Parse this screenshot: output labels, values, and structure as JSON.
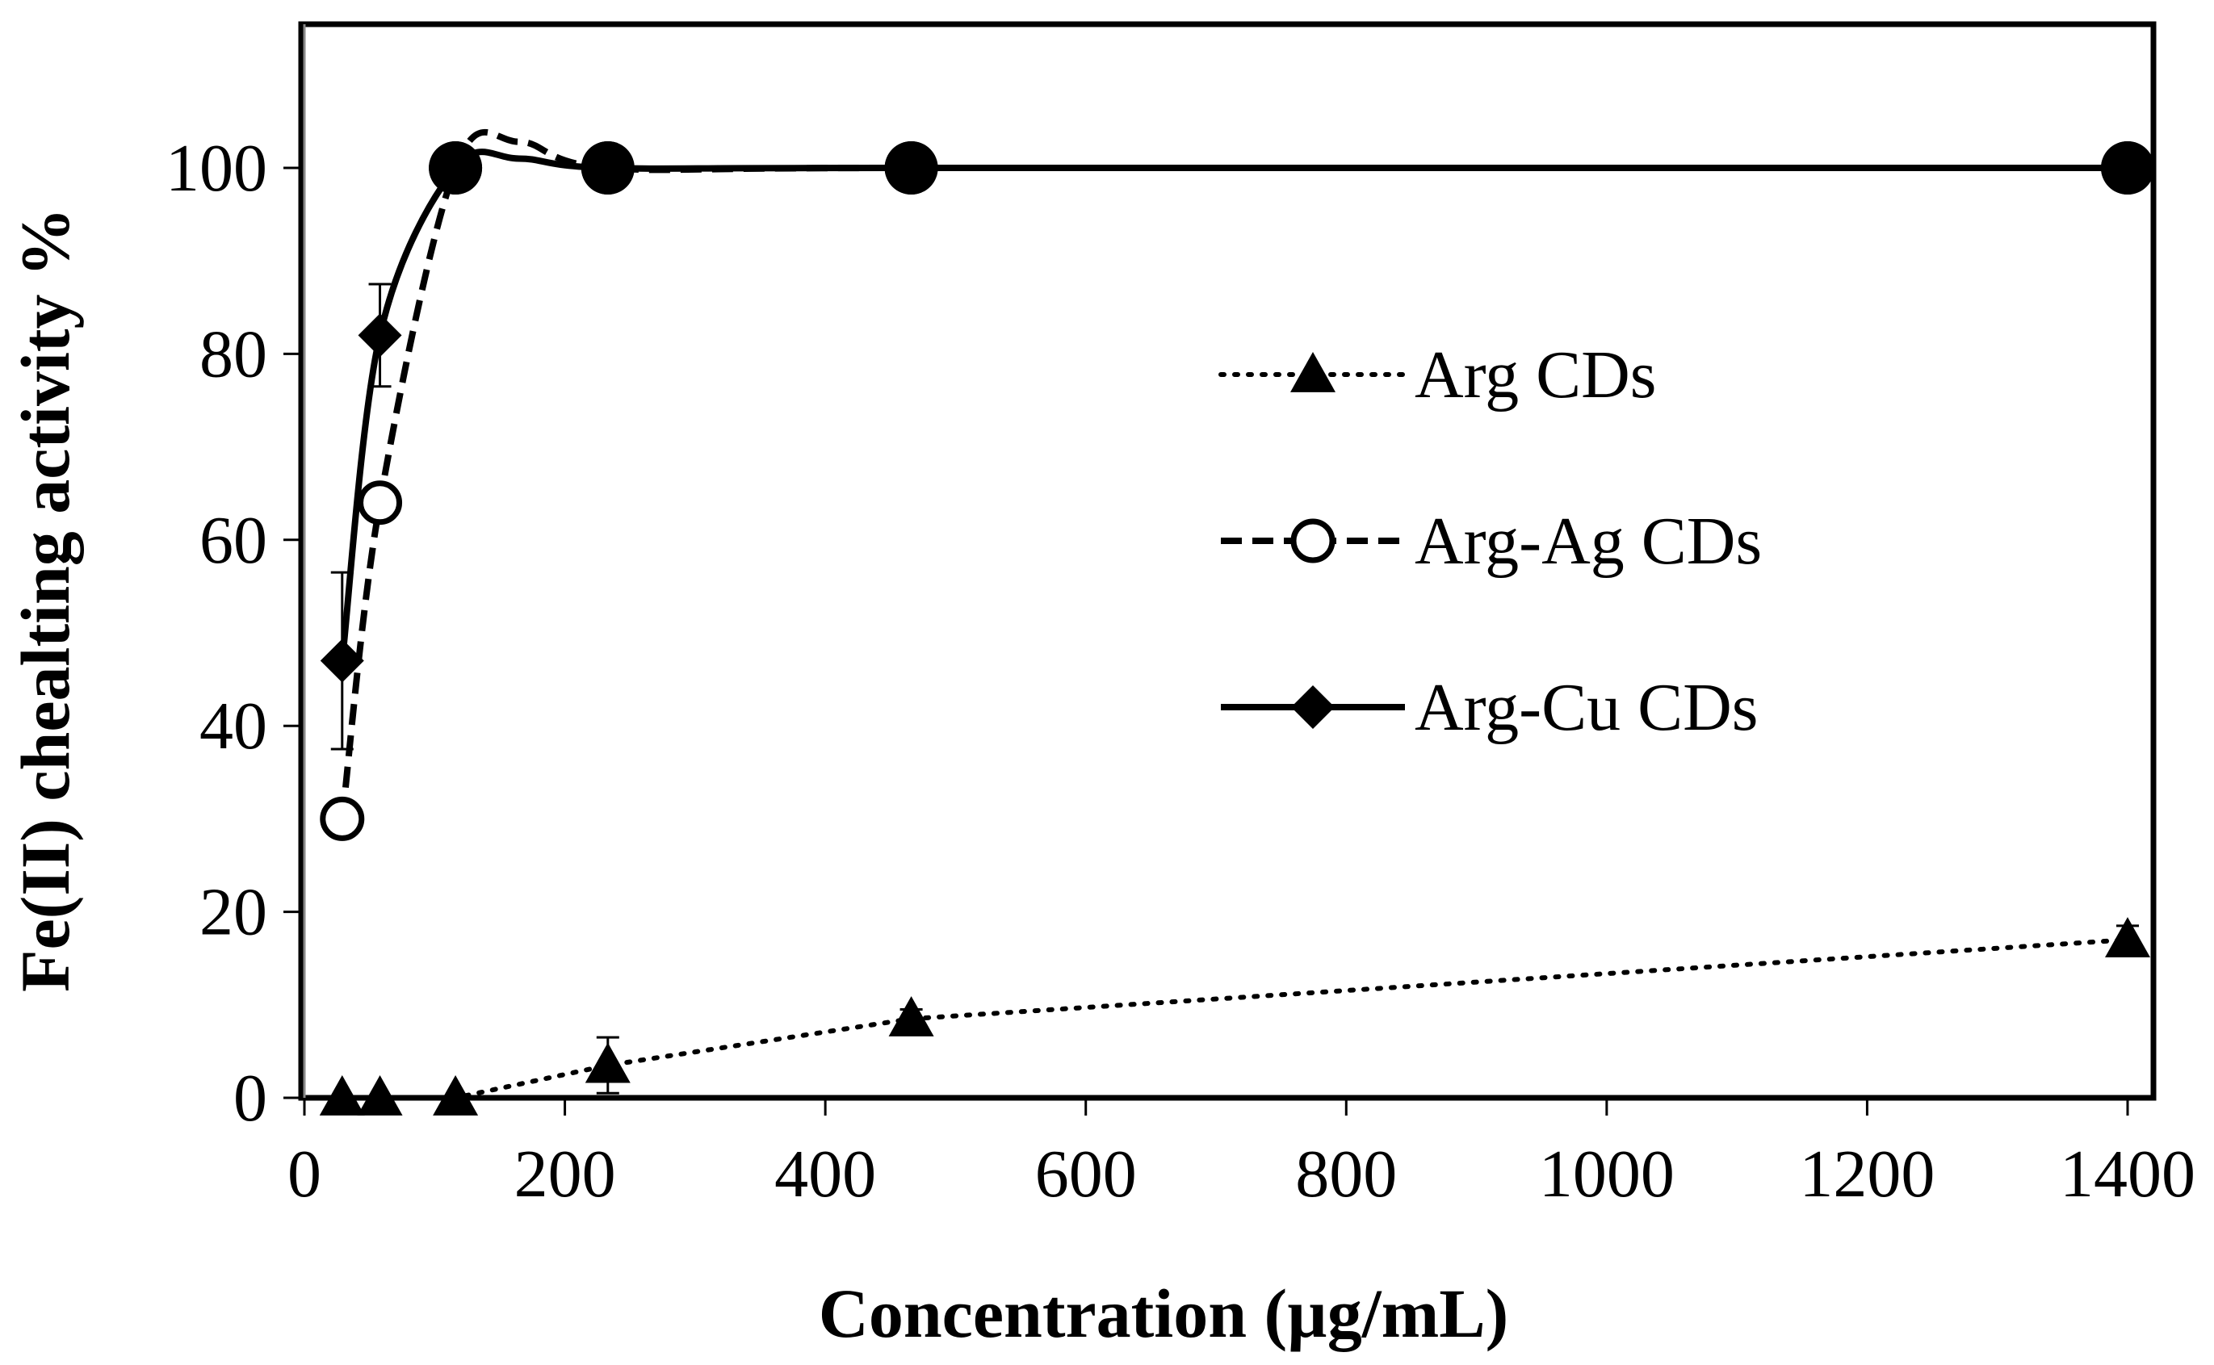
{
  "chart_data": {
    "type": "line",
    "title": "",
    "xlabel": "Concentration (µg/mL)",
    "ylabel": "Fe(II) chealting activity %",
    "xlim": [
      0,
      1400
    ],
    "ylim": [
      0,
      115
    ],
    "x_ticks": [
      0,
      200,
      400,
      600,
      800,
      1000,
      1200,
      1400
    ],
    "y_ticks": [
      0,
      20,
      40,
      60,
      80,
      100
    ],
    "x_tick_labels": [
      "0",
      "200",
      "400",
      "600",
      "800",
      "1000",
      "1200",
      "1400"
    ],
    "y_tick_labels": [
      "0",
      "20",
      "40",
      "60",
      "80",
      "100"
    ],
    "grid": false,
    "legend_position": "center-right",
    "series": [
      {
        "name": "Arg CDs",
        "line_style": "dotted",
        "marker": "triangle",
        "color": "#000000",
        "x": [
          29,
          58,
          116,
          233,
          466,
          1400
        ],
        "y": [
          0,
          0,
          0,
          3.5,
          8.5,
          17
        ],
        "error": [
          0,
          0,
          0,
          3,
          1,
          1.5
        ]
      },
      {
        "name": "Arg-Ag CDs",
        "line_style": "dashed",
        "marker": "circle-open",
        "color": "#000000",
        "x": [
          29,
          58,
          116,
          233,
          466,
          1400
        ],
        "y": [
          30,
          64,
          100,
          100,
          100,
          100
        ],
        "error": [
          1.5,
          1.5,
          0,
          0,
          0,
          0
        ]
      },
      {
        "name": "Arg-Cu CDs",
        "line_style": "solid",
        "marker": "diamond",
        "color": "#000000",
        "x": [
          29,
          58,
          116,
          233,
          466,
          1400
        ],
        "y": [
          47,
          82,
          100,
          100,
          100,
          100
        ],
        "error": [
          9.5,
          5.5,
          0,
          0,
          0,
          0
        ]
      }
    ]
  }
}
